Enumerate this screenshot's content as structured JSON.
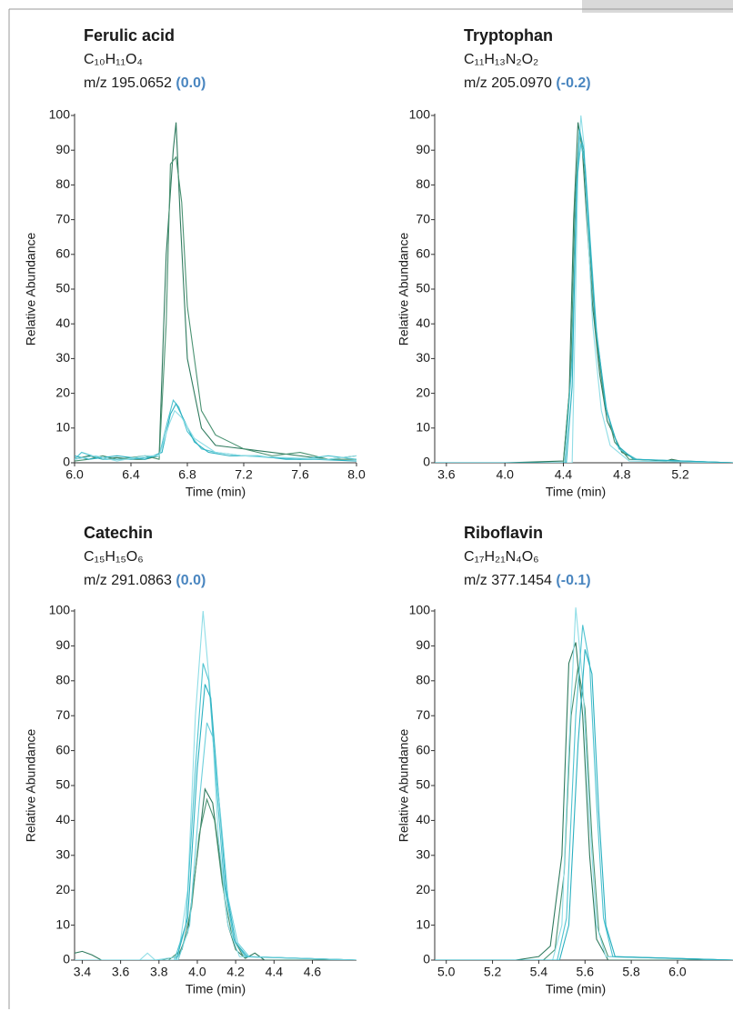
{
  "chart_data": [
    {
      "type": "line",
      "title": "Ferulic acid",
      "formula": "C₁₀H₁₁O₄",
      "mz": "m/z 195.0652",
      "error": "(0.0)",
      "x_label": "Time (min)",
      "y_label": "Relative Abundance",
      "xlim": [
        6.0,
        8.0
      ],
      "ylim": [
        0,
        100
      ],
      "xticks": [
        {
          "value": 6.0,
          "label": "6.0"
        },
        6.4,
        6.8,
        7.2,
        7.6,
        {
          "value": 8.0,
          "label": "8.0"
        }
      ],
      "yticks": [
        0,
        10,
        20,
        30,
        40,
        50,
        60,
        70,
        80,
        90,
        100
      ],
      "series": [
        {
          "color": "#2f7a5e",
          "x": [
            6.0,
            6.1,
            6.2,
            6.3,
            6.4,
            6.5,
            6.6,
            6.65,
            6.7,
            6.72,
            6.75,
            6.8,
            6.9,
            7.0,
            7.2,
            7.4,
            7.6,
            7.8,
            8.0
          ],
          "values": [
            1,
            2,
            1,
            1.5,
            1,
            1,
            2,
            60,
            90,
            98,
            70,
            30,
            10,
            5,
            4,
            3,
            2,
            1,
            2
          ]
        },
        {
          "color": "#4a9272",
          "x": [
            6.0,
            6.1,
            6.2,
            6.3,
            6.4,
            6.5,
            6.6,
            6.65,
            6.68,
            6.72,
            6.76,
            6.8,
            6.9,
            7.0,
            7.2,
            7.4,
            7.6,
            7.8,
            8.0
          ],
          "values": [
            0.5,
            1,
            2,
            1,
            1.5,
            2,
            1,
            40,
            86,
            88,
            75,
            45,
            15,
            8,
            4,
            2,
            3,
            1,
            1
          ]
        },
        {
          "color": "#4fc3d0",
          "x": [
            6.0,
            6.05,
            6.2,
            6.4,
            6.6,
            6.66,
            6.7,
            6.74,
            6.8,
            6.9,
            7.0,
            7.2,
            7.4,
            7.6,
            7.8,
            8.0
          ],
          "values": [
            1,
            3,
            1,
            1,
            2,
            12,
            18,
            16,
            9,
            4,
            3,
            2,
            1.5,
            1,
            2,
            1
          ]
        },
        {
          "color": "#2ab0c0",
          "x": [
            6.0,
            6.1,
            6.3,
            6.5,
            6.62,
            6.68,
            6.72,
            6.78,
            6.85,
            6.95,
            7.1,
            7.3,
            7.5,
            7.7,
            8.0
          ],
          "values": [
            2,
            1,
            2,
            1,
            3,
            14,
            17,
            12,
            6,
            3,
            2,
            2,
            1,
            1,
            0.5
          ]
        },
        {
          "color": "#8fdde6",
          "x": [
            6.0,
            6.15,
            6.3,
            6.5,
            6.6,
            6.67,
            6.71,
            6.76,
            6.85,
            7.0,
            7.2,
            7.5,
            7.8,
            8.0
          ],
          "values": [
            1,
            2,
            0.5,
            2,
            2,
            11,
            15,
            13,
            7,
            3,
            2,
            1.5,
            1,
            2
          ]
        }
      ]
    },
    {
      "type": "line",
      "title": "Tryptophan",
      "formula": "C₁₁H₁₃N₂O₂",
      "mz": "m/z 205.0970",
      "error": "(-0.2)",
      "x_label": "Time (min)",
      "y_label": "Relative Abundance",
      "xlim": [
        3.52,
        5.56
      ],
      "ylim": [
        0,
        100
      ],
      "xticks": [
        3.6,
        {
          "value": 4.0,
          "label": "4.0"
        },
        4.4,
        4.8,
        5.2
      ],
      "yticks": [
        0,
        10,
        20,
        30,
        40,
        50,
        60,
        70,
        80,
        90,
        100
      ],
      "series": [
        {
          "color": "#2f7a5e",
          "x": [
            3.52,
            4.0,
            4.4,
            4.44,
            4.47,
            4.5,
            4.53,
            4.56,
            4.6,
            4.65,
            4.7,
            4.8,
            4.9,
            5.1,
            5.14,
            5.2,
            5.56
          ],
          "values": [
            0,
            0,
            0.5,
            20,
            70,
            98,
            90,
            70,
            45,
            25,
            12,
            3,
            1,
            0.5,
            1,
            0.5,
            0
          ]
        },
        {
          "color": "#4a9272",
          "x": [
            3.52,
            4.4,
            4.45,
            4.48,
            4.51,
            4.54,
            4.58,
            4.62,
            4.68,
            4.75,
            4.85,
            5.56
          ],
          "values": [
            0,
            0,
            25,
            75,
            95,
            88,
            62,
            38,
            18,
            6,
            1,
            0
          ]
        },
        {
          "color": "#4fc3d0",
          "x": [
            3.52,
            4.41,
            4.46,
            4.49,
            4.52,
            4.55,
            4.59,
            4.63,
            4.7,
            4.78,
            4.9,
            5.56
          ],
          "values": [
            0,
            0,
            30,
            80,
            92,
            85,
            60,
            36,
            14,
            4,
            1,
            0
          ]
        },
        {
          "color": "#8fdde6",
          "x": [
            3.52,
            4.46,
            4.48,
            4.5,
            4.52,
            4.54,
            4.57,
            4.6,
            4.66,
            4.72,
            4.85,
            5.56
          ],
          "values": [
            0,
            0,
            40,
            85,
            100,
            92,
            65,
            40,
            15,
            5,
            0.5,
            0
          ]
        },
        {
          "color": "#2ab0c0",
          "x": [
            3.52,
            4.42,
            4.46,
            4.49,
            4.51,
            4.54,
            4.58,
            4.62,
            4.69,
            4.77,
            4.88,
            5.56
          ],
          "values": [
            0,
            0,
            22,
            78,
            96,
            90,
            64,
            40,
            16,
            5,
            1,
            0
          ]
        }
      ]
    },
    {
      "type": "line",
      "title": "Catechin",
      "formula": "C₁₅H₁₅O₆",
      "mz": "m/z 291.0863",
      "error": "(0.0)",
      "x_label": "Time (min)",
      "y_label": "Relative Abundance",
      "xlim": [
        3.36,
        4.83
      ],
      "ylim": [
        0,
        100
      ],
      "xticks": [
        3.4,
        3.6,
        3.8,
        {
          "value": 4.0,
          "label": "4.0"
        },
        4.2,
        4.4,
        4.6
      ],
      "yticks": [
        0,
        10,
        20,
        30,
        40,
        50,
        60,
        70,
        80,
        90,
        100
      ],
      "series": [
        {
          "color": "#2f7a5e",
          "x": [
            3.36,
            3.4,
            3.45,
            3.5,
            3.8,
            3.9,
            3.95,
            4.0,
            4.04,
            4.08,
            4.12,
            4.16,
            4.2,
            4.25,
            4.3,
            4.35,
            4.4,
            4.83
          ],
          "values": [
            2,
            2.5,
            1.5,
            0,
            0,
            1,
            8,
            30,
            49,
            45,
            28,
            10,
            3,
            0.5,
            2,
            0,
            0,
            0
          ]
        },
        {
          "color": "#4a9272",
          "x": [
            3.36,
            3.85,
            3.92,
            3.97,
            4.01,
            4.05,
            4.09,
            4.13,
            4.18,
            4.24,
            4.83
          ],
          "values": [
            0,
            0,
            3,
            15,
            36,
            46,
            40,
            22,
            7,
            1,
            0
          ]
        },
        {
          "color": "#8fdde6",
          "x": [
            3.36,
            3.7,
            3.74,
            3.78,
            3.9,
            3.95,
            3.99,
            4.03,
            4.07,
            4.11,
            4.16,
            4.22,
            4.83
          ],
          "values": [
            0,
            0,
            2,
            0,
            1,
            20,
            70,
            100,
            75,
            35,
            10,
            1,
            0
          ]
        },
        {
          "color": "#4fc3d0",
          "x": [
            3.36,
            3.88,
            3.94,
            3.99,
            4.03,
            4.06,
            4.1,
            4.14,
            4.19,
            4.25,
            4.83
          ],
          "values": [
            0,
            0,
            10,
            55,
            85,
            80,
            50,
            22,
            6,
            1,
            0
          ]
        },
        {
          "color": "#2ab0c0",
          "x": [
            3.36,
            3.89,
            3.95,
            4.0,
            4.04,
            4.07,
            4.11,
            4.15,
            4.2,
            4.26,
            4.83
          ],
          "values": [
            0,
            0,
            12,
            55,
            79,
            75,
            48,
            20,
            5,
            1,
            0
          ]
        },
        {
          "color": "#6ccfdb",
          "x": [
            3.36,
            3.9,
            3.96,
            4.01,
            4.05,
            4.08,
            4.12,
            4.16,
            4.21,
            4.27,
            4.83
          ],
          "values": [
            0,
            0,
            10,
            45,
            68,
            64,
            42,
            18,
            5,
            1,
            0
          ]
        }
      ]
    },
    {
      "type": "line",
      "title": "Riboflavin",
      "formula": "C₁₇H₂₁N₄O₆",
      "mz": "m/z 377.1454",
      "error": "(-0.1)",
      "x_label": "Time (min)",
      "y_label": "Relative Abundance",
      "xlim": [
        4.95,
        6.24
      ],
      "ylim": [
        0,
        100
      ],
      "xticks": [
        {
          "value": 5.0,
          "label": "5.0"
        },
        5.2,
        5.4,
        5.6,
        5.8,
        {
          "value": 6.0,
          "label": "6.0"
        }
      ],
      "yticks": [
        0,
        10,
        20,
        30,
        40,
        50,
        60,
        70,
        80,
        90,
        100
      ],
      "series": [
        {
          "color": "#2f7a5e",
          "x": [
            4.95,
            5.3,
            5.4,
            5.45,
            5.5,
            5.53,
            5.56,
            5.59,
            5.62,
            5.65,
            5.7,
            6.0,
            6.24
          ],
          "values": [
            0,
            0,
            1,
            4,
            30,
            85,
            91,
            70,
            30,
            6,
            0,
            0,
            0
          ]
        },
        {
          "color": "#4a9272",
          "x": [
            4.95,
            5.42,
            5.47,
            5.51,
            5.54,
            5.57,
            5.6,
            5.63,
            5.66,
            5.7,
            6.24
          ],
          "values": [
            0,
            0,
            3,
            25,
            70,
            84,
            72,
            35,
            8,
            1,
            0
          ]
        },
        {
          "color": "#8fdde6",
          "x": [
            4.95,
            5.46,
            5.5,
            5.53,
            5.56,
            5.59,
            5.62,
            5.65,
            5.69,
            6.24
          ],
          "values": [
            0,
            0,
            10,
            60,
            101,
            80,
            40,
            10,
            1,
            0
          ]
        },
        {
          "color": "#4fc3d0",
          "x": [
            4.95,
            5.48,
            5.52,
            5.56,
            5.59,
            5.62,
            5.65,
            5.68,
            5.72,
            6.24
          ],
          "values": [
            0,
            0,
            12,
            70,
            96,
            85,
            45,
            12,
            1,
            0
          ]
        },
        {
          "color": "#2ab0c0",
          "x": [
            4.95,
            5.49,
            5.53,
            5.57,
            5.6,
            5.63,
            5.66,
            5.69,
            5.73,
            6.24
          ],
          "values": [
            0,
            0,
            10,
            62,
            89,
            82,
            42,
            10,
            1,
            0
          ]
        }
      ]
    }
  ]
}
